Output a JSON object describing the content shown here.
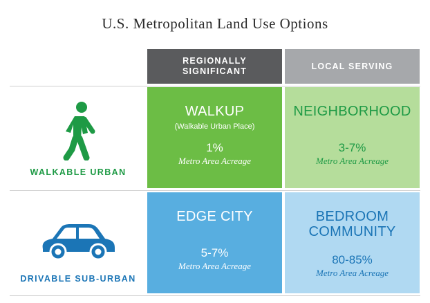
{
  "title": "U.S. Metropolitan Land Use Options",
  "columns": [
    {
      "label_line1": "REGIONALLY",
      "label_line2": "SIGNIFICANT",
      "color": "#5a5b5d"
    },
    {
      "label_line1": "LOCAL SERVING",
      "label_line2": "",
      "color": "#a6a8ab"
    }
  ],
  "rows": [
    {
      "label": "WALKABLE URBAN",
      "label_color": "#1e9a45",
      "icon": "walking-person-icon",
      "icon_color": "#1e9a45"
    },
    {
      "label": "DRIVABLE SUB-URBAN",
      "label_color": "#1b75b6",
      "icon": "car-icon",
      "icon_color": "#1b75b6"
    }
  ],
  "cells": {
    "walkup": {
      "title": "WALKUP",
      "subtitle": "(Walkable Urban Place)",
      "percent": "1%",
      "caption": "Metro Area Acreage",
      "bg": "#6cbd45",
      "text_color": "#ffffff"
    },
    "neighborhood": {
      "title": "NEIGHBORHOOD",
      "percent": "3-7%",
      "caption": "Metro Area Acreage",
      "bg": "#b5dd9b",
      "text_color": "#1e9a45"
    },
    "edge_city": {
      "title": "EDGE CITY",
      "percent": "5-7%",
      "caption": "Metro Area Acreage",
      "bg": "#58aee0",
      "text_color": "#ffffff"
    },
    "bedroom": {
      "title_line1": "BEDROOM",
      "title_line2": "COMMUNITY",
      "percent": "80-85%",
      "caption": "Metro Area Acreage",
      "bg": "#b0d9f2",
      "text_color": "#1b75b6"
    }
  }
}
